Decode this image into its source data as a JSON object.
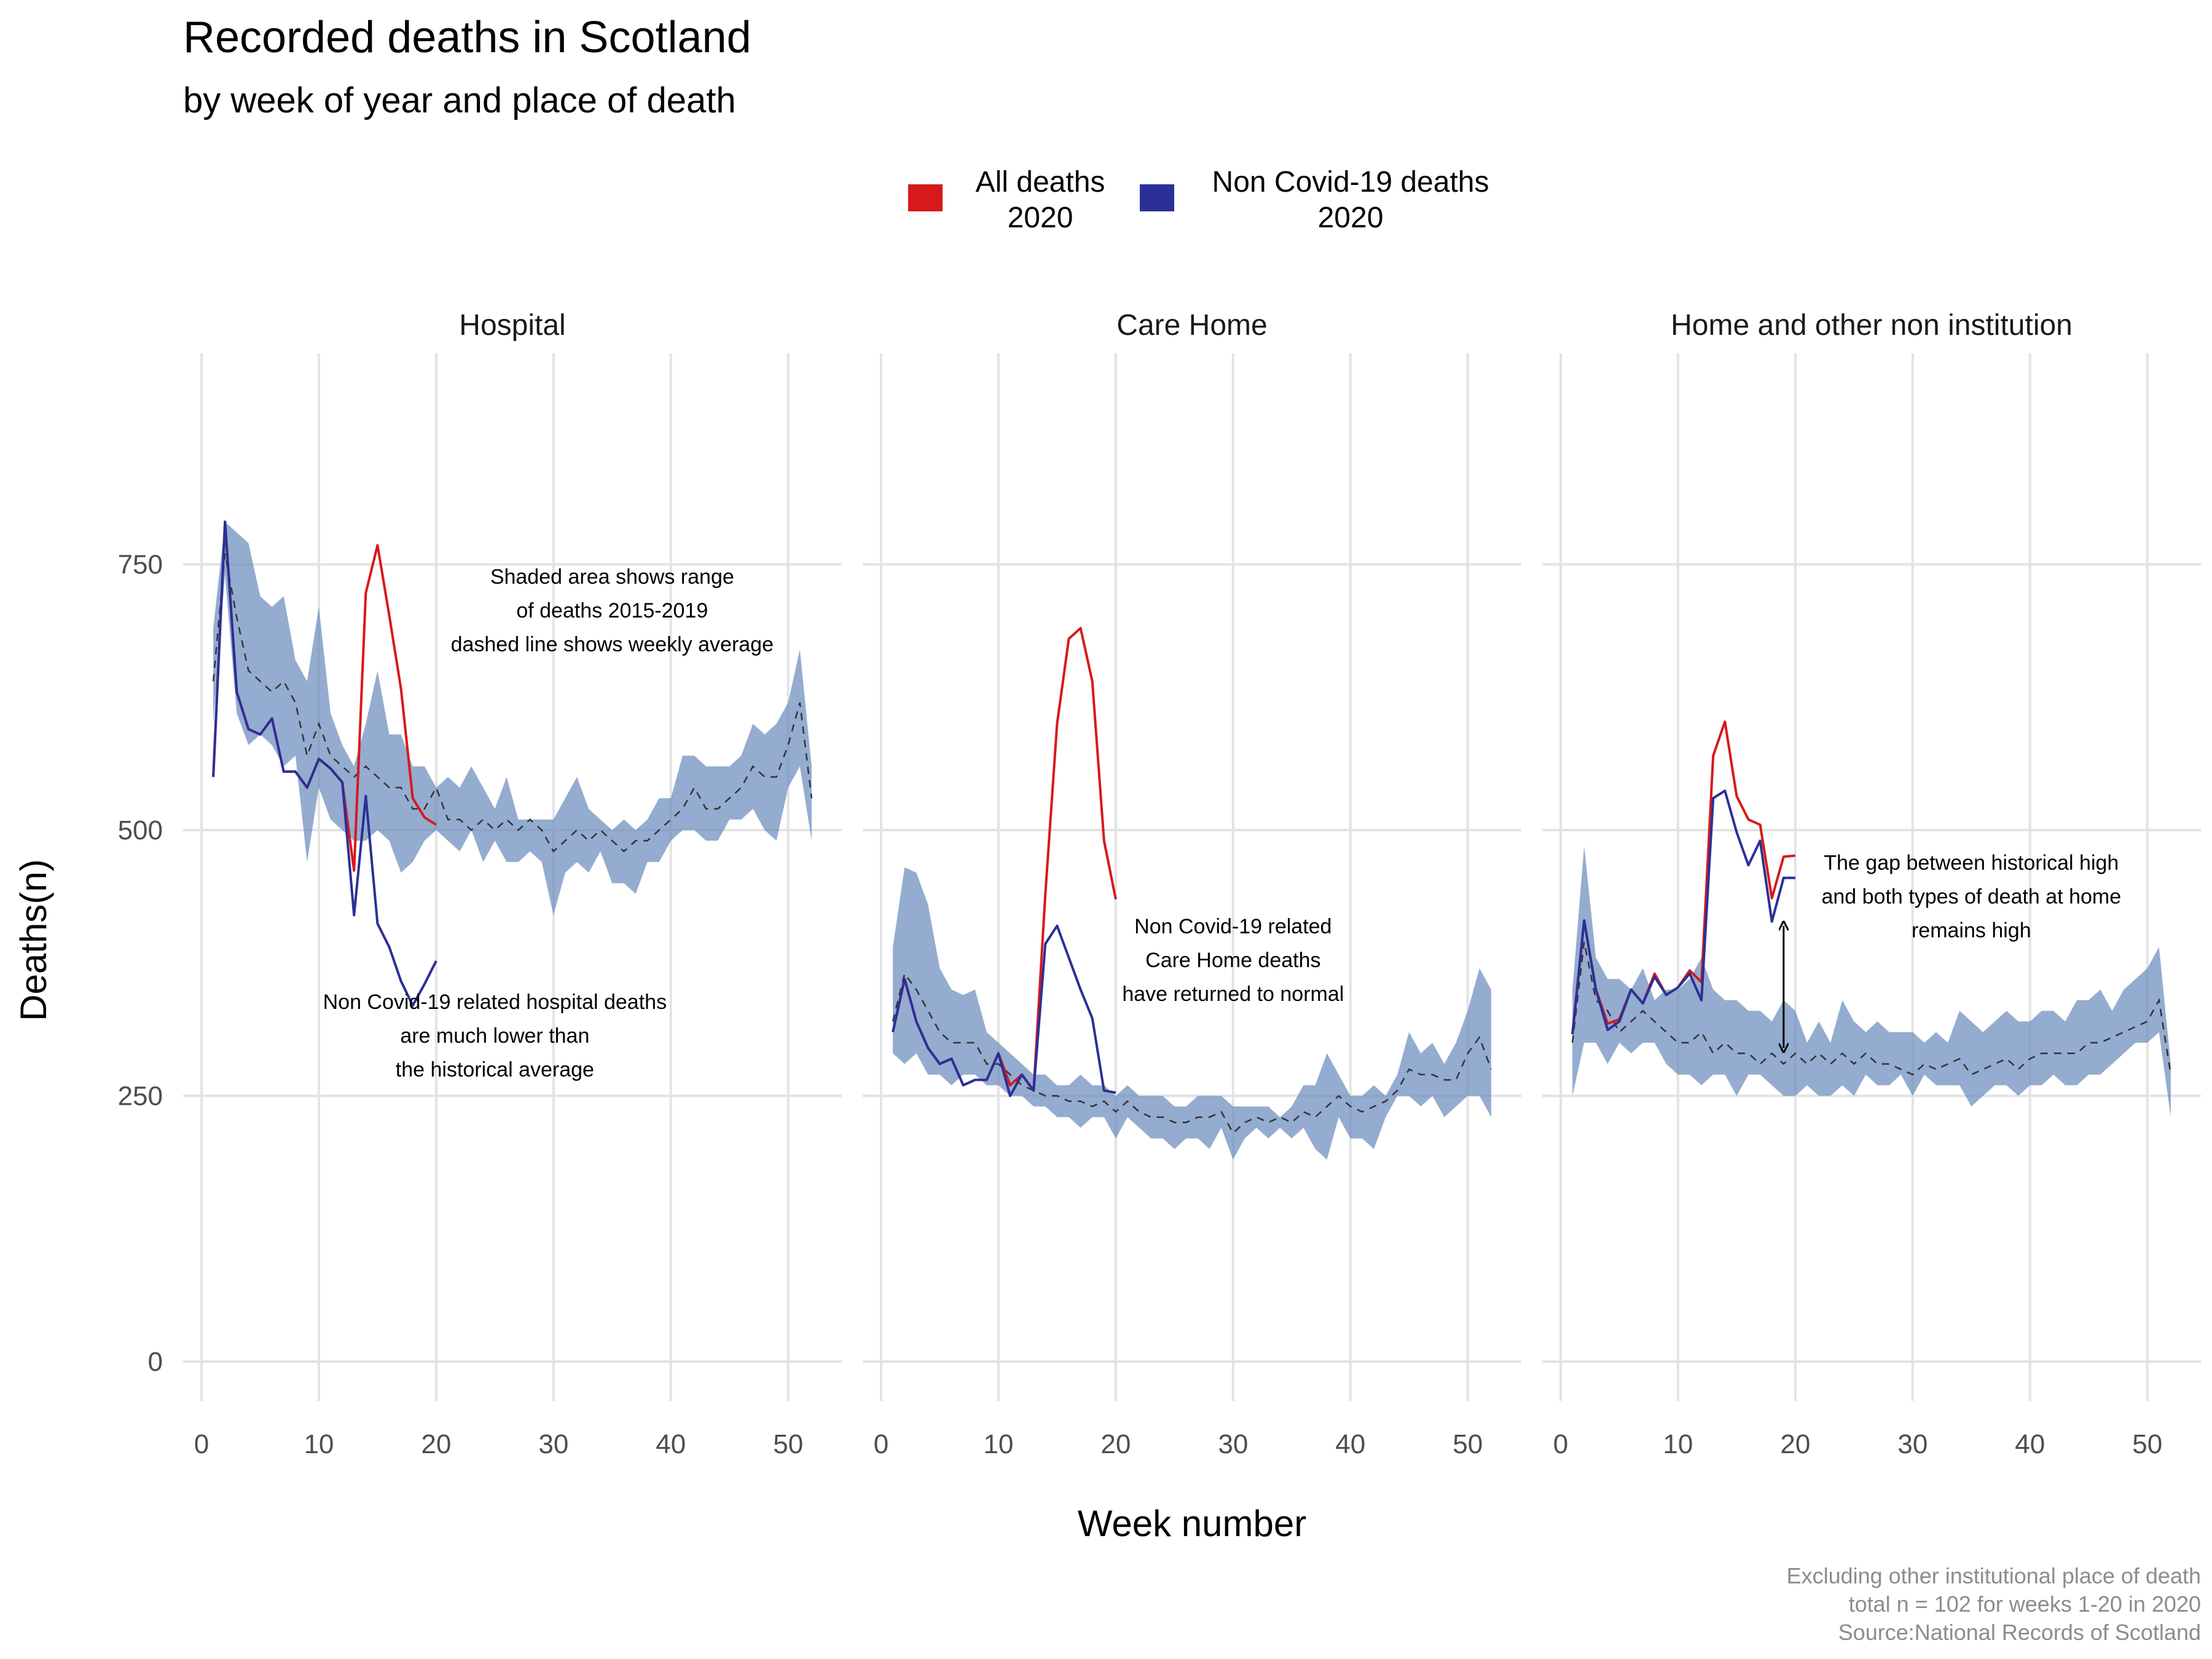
{
  "title": "Recorded deaths in Scotland",
  "subtitle": "by week of year and place of death",
  "legend": [
    {
      "label_line1": "All deaths",
      "label_line2": "2020",
      "color": "#d7191c"
    },
    {
      "label_line1": "Non Covid-19 deaths",
      "label_line2": "2020",
      "color": "#2b2f98"
    }
  ],
  "x_axis_title": "Week number",
  "y_axis_title": "Deaths(n)",
  "caption": [
    "Excluding other institutional place of death",
    "total n = 102 for weeks 1-20 in 2020",
    "Source:National Records of Scotland"
  ],
  "colors": {
    "band": "#6b8cbd",
    "all_deaths": "#d7191c",
    "non_covid": "#2b2f98",
    "average": "#333333"
  },
  "chart_data": [
    {
      "type": "line",
      "panel": "Hospital",
      "xlim": [
        0,
        53
      ],
      "ylim": [
        0,
        850
      ],
      "x_ticks": [
        0,
        10,
        20,
        30,
        40,
        50
      ],
      "y_ticks": [
        0,
        250,
        500,
        750
      ],
      "band_2015_2019": {
        "x": [
          1,
          2,
          3,
          4,
          5,
          6,
          7,
          8,
          9,
          10,
          11,
          12,
          13,
          14,
          15,
          16,
          17,
          18,
          19,
          20,
          21,
          22,
          23,
          24,
          25,
          26,
          27,
          28,
          29,
          30,
          31,
          32,
          33,
          34,
          35,
          36,
          37,
          38,
          39,
          40,
          41,
          42,
          43,
          44,
          45,
          46,
          47,
          48,
          49,
          50,
          51,
          52
        ],
        "min": [
          600,
          740,
          610,
          580,
          590,
          580,
          560,
          570,
          470,
          540,
          510,
          500,
          490,
          490,
          500,
          490,
          460,
          470,
          490,
          500,
          490,
          480,
          500,
          470,
          490,
          470,
          470,
          480,
          470,
          420,
          460,
          470,
          460,
          480,
          450,
          450,
          440,
          470,
          470,
          490,
          500,
          500,
          490,
          490,
          510,
          510,
          520,
          500,
          490,
          540,
          560,
          490
        ],
        "max": [
          690,
          790,
          780,
          770,
          720,
          710,
          720,
          660,
          640,
          710,
          610,
          580,
          560,
          600,
          650,
          590,
          590,
          560,
          560,
          540,
          550,
          540,
          560,
          540,
          520,
          550,
          510,
          510,
          510,
          510,
          530,
          550,
          520,
          510,
          500,
          510,
          500,
          510,
          530,
          530,
          570,
          570,
          560,
          560,
          560,
          570,
          600,
          590,
          600,
          620,
          670,
          560
        ]
      },
      "average": {
        "x": [
          1,
          2,
          3,
          4,
          5,
          6,
          7,
          8,
          9,
          10,
          11,
          12,
          13,
          14,
          15,
          16,
          17,
          18,
          19,
          20,
          21,
          22,
          23,
          24,
          25,
          26,
          27,
          28,
          29,
          30,
          31,
          32,
          33,
          34,
          35,
          36,
          37,
          38,
          39,
          40,
          41,
          42,
          43,
          44,
          45,
          46,
          47,
          48,
          49,
          50,
          51,
          52
        ],
        "y": [
          640,
          760,
          700,
          650,
          640,
          630,
          640,
          620,
          570,
          600,
          570,
          560,
          550,
          560,
          550,
          540,
          540,
          520,
          520,
          540,
          510,
          510,
          500,
          510,
          500,
          510,
          500,
          510,
          500,
          480,
          490,
          500,
          490,
          500,
          490,
          480,
          490,
          490,
          500,
          510,
          520,
          540,
          520,
          520,
          530,
          540,
          560,
          550,
          550,
          580,
          620,
          530
        ]
      },
      "series": [
        {
          "name": "All deaths 2020",
          "x": [
            1,
            2,
            3,
            4,
            5,
            6,
            7,
            8,
            9,
            10,
            11,
            12,
            13,
            14,
            15,
            16,
            17,
            18,
            19,
            20
          ],
          "values": [
            550,
            790,
            630,
            595,
            590,
            605,
            555,
            555,
            540,
            567,
            558,
            545,
            462,
            723,
            768,
            702,
            633,
            530,
            512,
            505
          ]
        },
        {
          "name": "Non Covid-19 deaths 2020",
          "x": [
            1,
            2,
            3,
            4,
            5,
            6,
            7,
            8,
            9,
            10,
            11,
            12,
            13,
            14,
            15,
            16,
            17,
            18,
            19,
            20
          ],
          "values": [
            550,
            790,
            630,
            595,
            590,
            605,
            555,
            555,
            540,
            567,
            558,
            545,
            420,
            532,
            412,
            390,
            358,
            335,
            355,
            377
          ]
        }
      ],
      "annotations": [
        {
          "lines": [
            "Shaded area shows range",
            "of deaths 2015-2019",
            "dashed line shows weekly average"
          ],
          "x": 35,
          "y": 707
        },
        {
          "lines": [
            "Non Covid-19 related hospital deaths",
            "are much lower than",
            "the historical average"
          ],
          "x": 25,
          "y": 307
        }
      ]
    },
    {
      "type": "line",
      "panel": "Care Home",
      "xlim": [
        0,
        53
      ],
      "ylim": [
        0,
        850
      ],
      "x_ticks": [
        0,
        10,
        20,
        30,
        40,
        50
      ],
      "y_ticks": [
        0,
        250,
        500,
        750
      ],
      "band_2015_2019": {
        "x": [
          1,
          2,
          3,
          4,
          5,
          6,
          7,
          8,
          9,
          10,
          11,
          12,
          13,
          14,
          15,
          16,
          17,
          18,
          19,
          20,
          21,
          22,
          23,
          24,
          25,
          26,
          27,
          28,
          29,
          30,
          31,
          32,
          33,
          34,
          35,
          36,
          37,
          38,
          39,
          40,
          41,
          42,
          43,
          44,
          45,
          46,
          47,
          48,
          49,
          50,
          51,
          52
        ],
        "min": [
          290,
          280,
          290,
          270,
          270,
          260,
          270,
          270,
          260,
          260,
          250,
          250,
          240,
          240,
          230,
          230,
          220,
          230,
          230,
          210,
          230,
          220,
          210,
          210,
          200,
          210,
          210,
          200,
          220,
          190,
          210,
          220,
          210,
          220,
          210,
          220,
          200,
          190,
          230,
          210,
          210,
          200,
          230,
          250,
          250,
          240,
          250,
          230,
          240,
          250,
          250,
          230
        ],
        "max": [
          390,
          465,
          460,
          430,
          370,
          350,
          345,
          350,
          310,
          300,
          290,
          280,
          270,
          270,
          260,
          260,
          270,
          260,
          260,
          250,
          260,
          250,
          250,
          250,
          240,
          240,
          250,
          250,
          250,
          240,
          240,
          240,
          240,
          230,
          240,
          260,
          260,
          290,
          270,
          250,
          250,
          260,
          250,
          270,
          310,
          290,
          300,
          280,
          300,
          330,
          370,
          350
        ]
      },
      "average": {
        "x": [
          1,
          2,
          3,
          4,
          5,
          6,
          7,
          8,
          9,
          10,
          11,
          12,
          13,
          14,
          15,
          16,
          17,
          18,
          19,
          20,
          21,
          22,
          23,
          24,
          25,
          26,
          27,
          28,
          29,
          30,
          31,
          32,
          33,
          34,
          35,
          36,
          37,
          38,
          39,
          40,
          41,
          42,
          43,
          44,
          45,
          46,
          47,
          48,
          49,
          50,
          51,
          52
        ],
        "y": [
          320,
          365,
          350,
          330,
          310,
          300,
          300,
          300,
          280,
          280,
          270,
          260,
          255,
          250,
          250,
          245,
          245,
          240,
          245,
          235,
          245,
          235,
          230,
          230,
          225,
          225,
          230,
          230,
          235,
          215,
          225,
          230,
          225,
          230,
          225,
          235,
          230,
          240,
          250,
          240,
          235,
          240,
          245,
          255,
          275,
          270,
          270,
          265,
          265,
          290,
          305,
          275
        ]
      },
      "series": [
        {
          "name": "All deaths 2020",
          "x": [
            1,
            2,
            3,
            4,
            5,
            6,
            7,
            8,
            9,
            10,
            11,
            12,
            13,
            14,
            15,
            16,
            17,
            18,
            19,
            20
          ],
          "values": [
            310,
            360,
            320,
            295,
            280,
            285,
            260,
            265,
            265,
            290,
            260,
            270,
            255,
            440,
            600,
            680,
            690,
            640,
            490,
            435
          ]
        },
        {
          "name": "Non Covid-19 deaths 2020",
          "x": [
            1,
            2,
            3,
            4,
            5,
            6,
            7,
            8,
            9,
            10,
            11,
            12,
            13,
            14,
            15,
            16,
            17,
            18,
            19,
            20
          ],
          "values": [
            310,
            360,
            320,
            295,
            280,
            285,
            260,
            265,
            265,
            290,
            250,
            270,
            255,
            393,
            410,
            380,
            350,
            323,
            255,
            253
          ]
        }
      ],
      "annotations": [
        {
          "lines": [
            "Non Covid-19 related",
            "Care Home deaths",
            "have returned to normal"
          ],
          "x": 30,
          "y": 378
        }
      ]
    },
    {
      "type": "line",
      "panel": "Home and other non institution",
      "xlim": [
        0,
        53
      ],
      "ylim": [
        0,
        850
      ],
      "x_ticks": [
        0,
        10,
        20,
        30,
        40,
        50
      ],
      "y_ticks": [
        0,
        250,
        500,
        750
      ],
      "band_2015_2019": {
        "x": [
          1,
          2,
          3,
          4,
          5,
          6,
          7,
          8,
          9,
          10,
          11,
          12,
          13,
          14,
          15,
          16,
          17,
          18,
          19,
          20,
          21,
          22,
          23,
          24,
          25,
          26,
          27,
          28,
          29,
          30,
          31,
          32,
          33,
          34,
          35,
          36,
          37,
          38,
          39,
          40,
          41,
          42,
          43,
          44,
          45,
          46,
          47,
          48,
          49,
          50,
          51,
          52
        ],
        "min": [
          250,
          300,
          300,
          280,
          300,
          290,
          300,
          300,
          280,
          270,
          270,
          260,
          270,
          270,
          250,
          270,
          270,
          260,
          250,
          250,
          260,
          250,
          250,
          260,
          250,
          270,
          260,
          260,
          270,
          250,
          270,
          260,
          260,
          260,
          240,
          250,
          260,
          260,
          250,
          260,
          260,
          270,
          260,
          260,
          270,
          270,
          280,
          290,
          300,
          300,
          310,
          230
        ],
        "max": [
          350,
          485,
          380,
          360,
          360,
          350,
          370,
          340,
          350,
          350,
          360,
          380,
          350,
          340,
          340,
          330,
          330,
          320,
          340,
          330,
          300,
          320,
          300,
          340,
          320,
          310,
          320,
          310,
          310,
          310,
          300,
          310,
          300,
          330,
          320,
          310,
          320,
          330,
          320,
          320,
          330,
          330,
          320,
          340,
          340,
          350,
          330,
          350,
          360,
          370,
          390,
          280
        ]
      },
      "average": {
        "x": [
          1,
          2,
          3,
          4,
          5,
          6,
          7,
          8,
          9,
          10,
          11,
          12,
          13,
          14,
          15,
          16,
          17,
          18,
          19,
          20,
          21,
          22,
          23,
          24,
          25,
          26,
          27,
          28,
          29,
          30,
          31,
          32,
          33,
          34,
          35,
          36,
          37,
          38,
          39,
          40,
          41,
          42,
          43,
          44,
          45,
          46,
          47,
          48,
          49,
          50,
          51,
          52
        ],
        "y": [
          300,
          395,
          340,
          330,
          310,
          320,
          330,
          320,
          310,
          300,
          300,
          310,
          290,
          300,
          290,
          290,
          280,
          290,
          280,
          290,
          280,
          290,
          280,
          290,
          280,
          290,
          280,
          280,
          275,
          270,
          280,
          275,
          280,
          285,
          270,
          275,
          280,
          285,
          275,
          285,
          290,
          290,
          290,
          290,
          300,
          300,
          305,
          310,
          315,
          320,
          340,
          270
        ]
      },
      "series": [
        {
          "name": "All deaths 2020",
          "x": [
            1,
            2,
            3,
            4,
            5,
            6,
            7,
            8,
            9,
            10,
            11,
            12,
            13,
            14,
            15,
            16,
            17,
            18,
            19,
            20
          ],
          "values": [
            308,
            415,
            350,
            318,
            322,
            350,
            337,
            365,
            345,
            352,
            368,
            357,
            570,
            602,
            532,
            510,
            505,
            436,
            475,
            476
          ]
        },
        {
          "name": "Non Covid-19 deaths 2020",
          "x": [
            1,
            2,
            3,
            4,
            5,
            6,
            7,
            8,
            9,
            10,
            11,
            12,
            13,
            14,
            15,
            16,
            17,
            18,
            19,
            20
          ],
          "values": [
            308,
            415,
            350,
            312,
            320,
            350,
            337,
            362,
            345,
            352,
            365,
            340,
            530,
            537,
            498,
            467,
            490,
            414,
            455,
            455
          ]
        }
      ],
      "annotations": [
        {
          "lines": [
            "The gap between historical high",
            "and both types of death at home",
            "remains high"
          ],
          "x": 35,
          "y": 438
        }
      ],
      "gap_arrow": {
        "x": 19,
        "y_from": 410,
        "y_to": 295
      }
    }
  ]
}
